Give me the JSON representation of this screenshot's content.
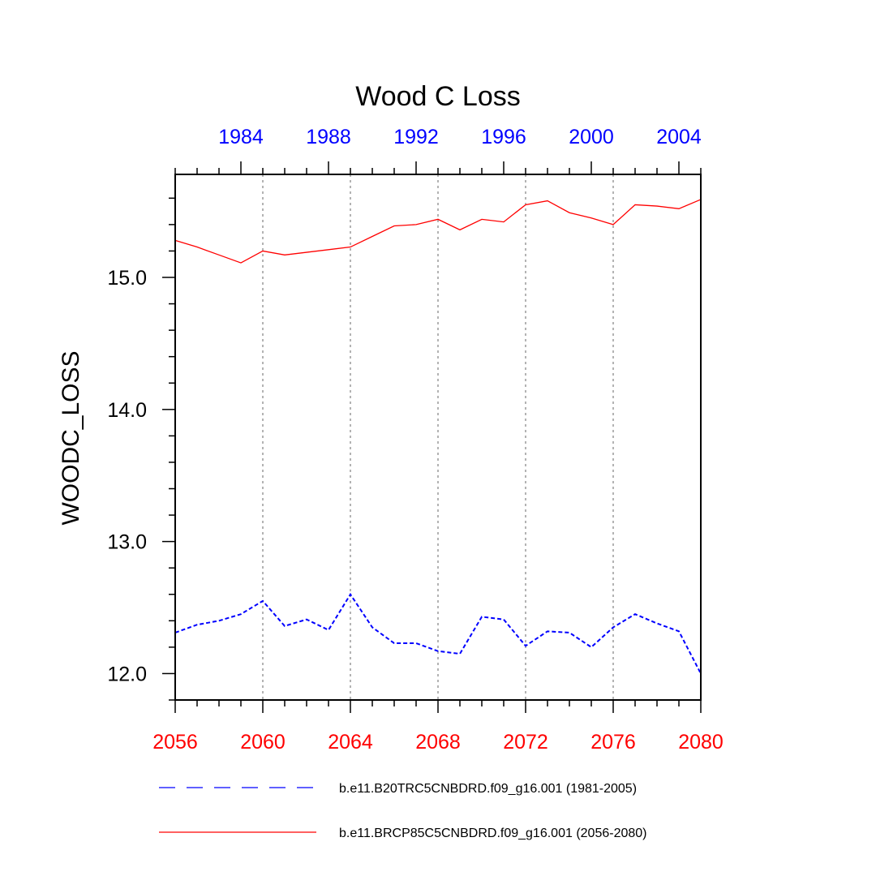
{
  "chart_data": {
    "type": "line",
    "title": "Wood C Loss",
    "ylabel": "WOODC_LOSS",
    "ylim": [
      11.8,
      15.78
    ],
    "yticks": [
      12.0,
      13.0,
      14.0,
      15.0
    ],
    "ytick_labels": [
      "12.0",
      "13.0",
      "14.0",
      "15.0"
    ],
    "bottom_axis": {
      "range": [
        2056,
        2080
      ],
      "ticks": [
        2056,
        2060,
        2064,
        2068,
        2072,
        2076,
        2080
      ],
      "tick_labels": [
        "2056",
        "2060",
        "2064",
        "2068",
        "2072",
        "2076",
        "2080"
      ],
      "color": "#ff0000"
    },
    "top_axis": {
      "range": [
        1981,
        2005
      ],
      "ticks": [
        1984,
        1988,
        1992,
        1996,
        2000,
        2004
      ],
      "tick_labels": [
        "1984",
        "1988",
        "1992",
        "1996",
        "2000",
        "2004"
      ],
      "color": "#0000ff"
    },
    "vertical_gridlines_at": [
      2060,
      2064,
      2068,
      2072,
      2076
    ],
    "series": [
      {
        "name": "b.e11.B20TRC5CNBDRD.f09_g16.001 (1981-2005)",
        "axis": "top",
        "color": "#0000ff",
        "dash": "dashed",
        "x": [
          1981,
          1982,
          1983,
          1984,
          1985,
          1986,
          1987,
          1988,
          1989,
          1990,
          1991,
          1992,
          1993,
          1994,
          1995,
          1996,
          1997,
          1998,
          1999,
          2000,
          2001,
          2002,
          2003,
          2004,
          2005
        ],
        "values": [
          12.31,
          12.37,
          12.4,
          12.45,
          12.55,
          12.36,
          12.41,
          12.33,
          12.6,
          12.35,
          12.23,
          12.23,
          12.17,
          12.15,
          12.43,
          12.41,
          12.21,
          12.32,
          12.31,
          12.2,
          12.35,
          12.45,
          12.38,
          12.32,
          12.0
        ]
      },
      {
        "name": "b.e11.BRCP85C5CNBDRD.f09_g16.001 (2056-2080)",
        "axis": "bottom",
        "color": "#ff0000",
        "dash": "solid",
        "x": [
          2056,
          2057,
          2058,
          2059,
          2060,
          2061,
          2062,
          2063,
          2064,
          2065,
          2066,
          2067,
          2068,
          2069,
          2070,
          2071,
          2072,
          2073,
          2074,
          2075,
          2076,
          2077,
          2078,
          2079,
          2080
        ],
        "values": [
          15.28,
          15.23,
          15.17,
          15.11,
          15.2,
          15.17,
          15.19,
          15.21,
          15.23,
          15.31,
          15.39,
          15.4,
          15.44,
          15.36,
          15.44,
          15.42,
          15.55,
          15.58,
          15.49,
          15.45,
          15.4,
          15.55,
          15.54,
          15.52,
          15.59
        ]
      }
    ],
    "legend_placement": "bottom"
  }
}
